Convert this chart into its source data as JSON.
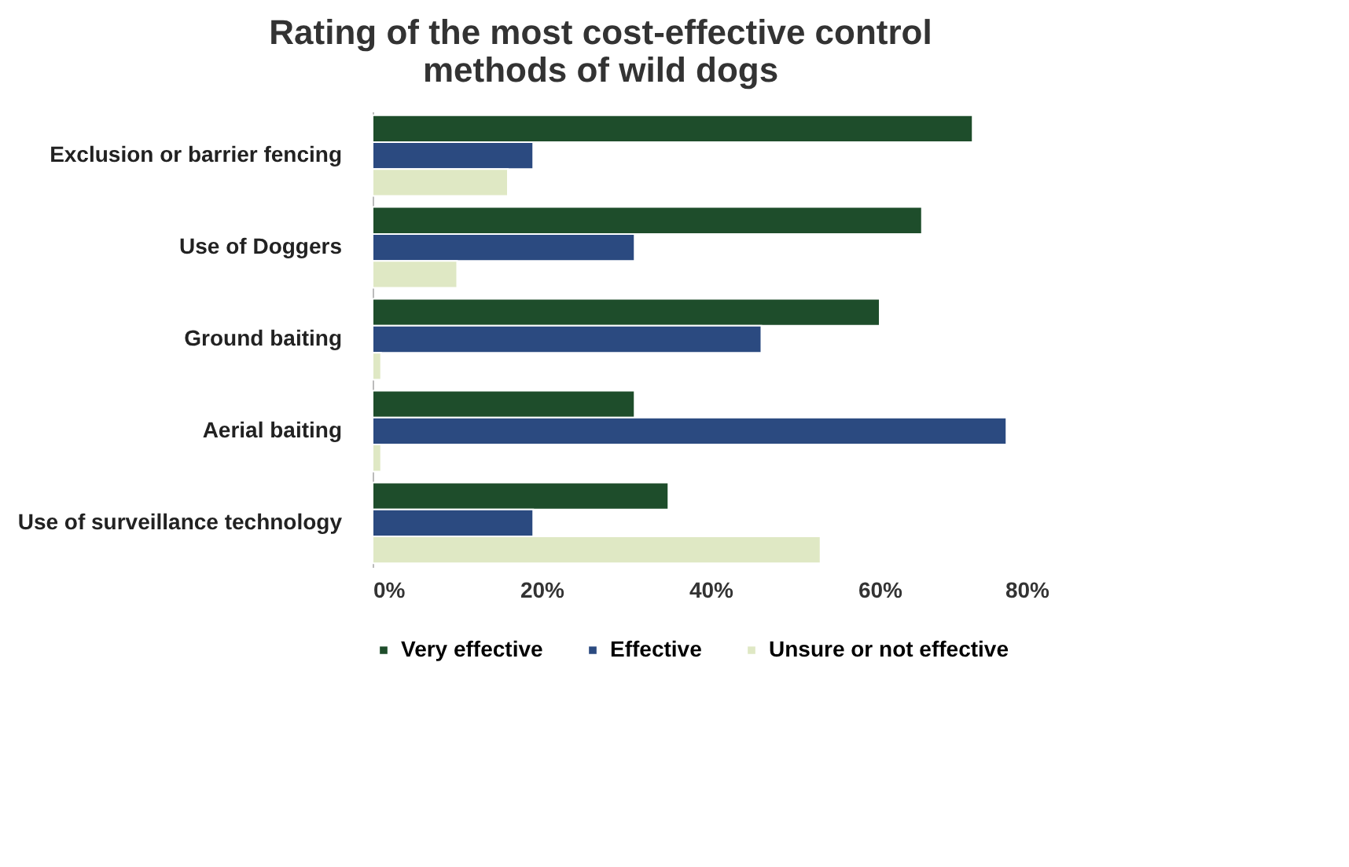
{
  "chart_data": {
    "type": "bar",
    "orientation": "horizontal",
    "title": [
      "Rating of the most cost-effective control",
      "methods of wild dogs"
    ],
    "categories": [
      "Exclusion or barrier fencing",
      "Use of Doggers",
      "Ground baiting",
      "Aerial baiting",
      "Use of surveillance technology"
    ],
    "series": [
      {
        "name": "Very effective",
        "color": "#1e4d2b",
        "values": [
          71,
          65,
          60,
          31,
          35
        ]
      },
      {
        "name": "Effective",
        "color": "#2b4a80",
        "values": [
          19,
          31,
          46,
          75,
          19
        ]
      },
      {
        "name": "Unsure or not  effective",
        "color": "#dfe8c4",
        "values": [
          16,
          10,
          1,
          1,
          53
        ]
      }
    ],
    "xlim": [
      0,
      80
    ],
    "xticks": [
      {
        "value": 0,
        "label": "0%"
      },
      {
        "value": 20,
        "label": "20%"
      },
      {
        "value": 40,
        "label": "40%"
      },
      {
        "value": 60,
        "label": "60%"
      },
      {
        "value": 80,
        "label": "80%"
      }
    ],
    "grid": false,
    "legend": "bottom"
  }
}
